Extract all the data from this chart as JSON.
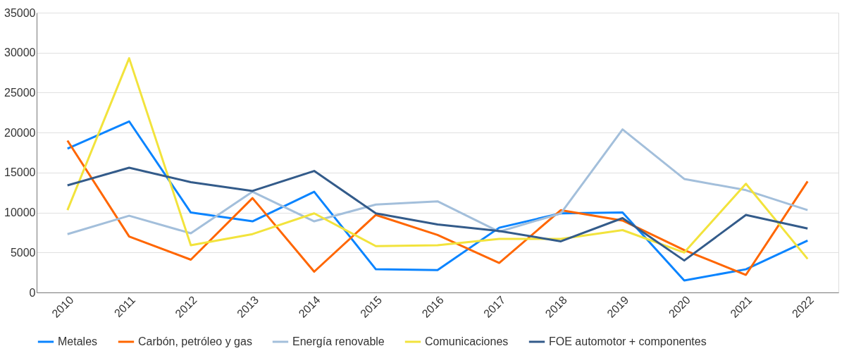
{
  "chart_data": {
    "type": "line",
    "categories": [
      "2010",
      "2011",
      "2012",
      "2013",
      "2014",
      "2015",
      "2016",
      "2017",
      "2018",
      "2019",
      "2020",
      "2021",
      "2022"
    ],
    "ylim": [
      0,
      35000
    ],
    "yticks": [
      0,
      5000,
      10000,
      15000,
      20000,
      25000,
      30000,
      35000
    ],
    "grid": "y",
    "legend": "bottom",
    "marker": "none",
    "line_style": "solid",
    "series": [
      {
        "name": "Metales",
        "color": "#0a84ff",
        "values": [
          18000,
          21400,
          10000,
          8900,
          12600,
          2900,
          2800,
          8100,
          9900,
          10000,
          1500,
          2900,
          6500
        ]
      },
      {
        "name": "Carbón, petróleo y gas",
        "color": "#ff6600",
        "values": [
          19000,
          7000,
          4100,
          11800,
          2600,
          9700,
          7200,
          3700,
          10300,
          9000,
          5300,
          2200,
          13900
        ]
      },
      {
        "name": "Energía renovable",
        "color": "#a3bfdb",
        "values": [
          7300,
          9600,
          7400,
          12600,
          8900,
          11000,
          11400,
          7600,
          9900,
          20400,
          14200,
          12800,
          10300
        ]
      },
      {
        "name": "Comunicaciones",
        "color": "#f2e33c",
        "values": [
          10300,
          29300,
          5900,
          7300,
          9900,
          5800,
          5900,
          6700,
          6700,
          7800,
          5000,
          13600,
          4200
        ]
      },
      {
        "name": "FOE automotor + componentes",
        "color": "#335b8a",
        "values": [
          13400,
          15600,
          13800,
          12700,
          15200,
          9900,
          8500,
          7700,
          6400,
          9300,
          4000,
          9700,
          8000
        ]
      }
    ]
  }
}
